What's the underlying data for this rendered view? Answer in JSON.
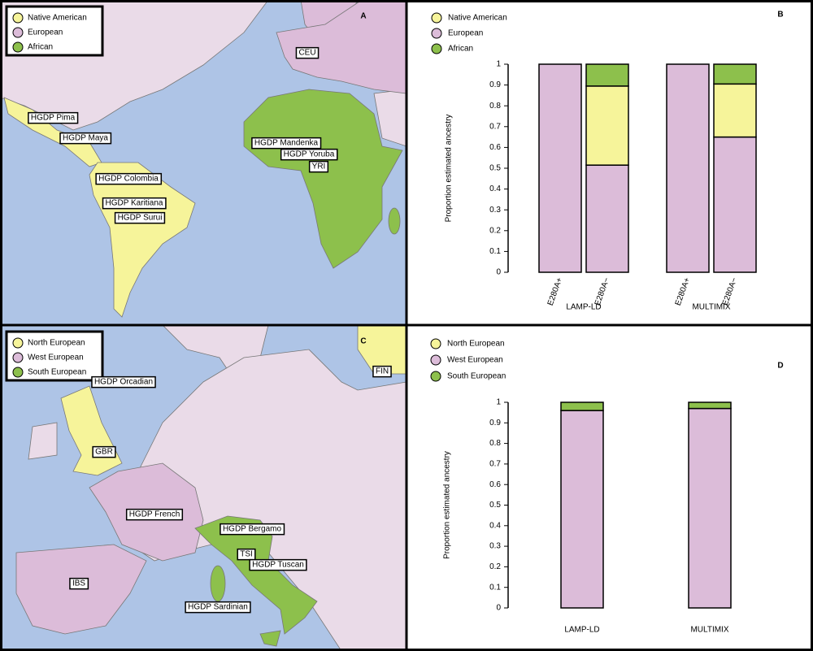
{
  "maps": [
    {
      "panel": "A",
      "legend": [
        {
          "label": "Native American",
          "color": "#f6f49a"
        },
        {
          "label": "European",
          "color": "#dcbcd9"
        },
        {
          "label": "African",
          "color": "#8dc04c"
        }
      ],
      "labels": [
        "CEU",
        "HGDP Pima",
        "HGDP Maya",
        "HGDP Colombia",
        "HGDP Mandenka",
        "HGDP Yoruba",
        "YRI",
        "HGDP Karitiana",
        "HGDP Surui"
      ]
    },
    {
      "panel": "C",
      "legend": [
        {
          "label": "North European",
          "color": "#f6f49a"
        },
        {
          "label": "West European",
          "color": "#dcbcd9"
        },
        {
          "label": "South European",
          "color": "#8dc04c"
        }
      ],
      "labels": [
        "FIN",
        "HGDP Orcadian",
        "GBR",
        "HGDP French",
        "HGDP Bergamo",
        "TSI",
        "HGDP Tuscan",
        "IBS",
        "HGDP Sardinian"
      ]
    }
  ],
  "chart_data": [
    {
      "type": "bar",
      "stacked": true,
      "panel": "B",
      "y_label": "Proportion estimated ancestry",
      "categories": [
        "E280A+",
        "E280A−",
        "E280A+",
        "E280A−"
      ],
      "group_labels": [
        "LAMP-LD",
        "MULTIMIX"
      ],
      "series": [
        {
          "name": "Native American",
          "color": "#f6f49a",
          "values": [
            0,
            0.38,
            0,
            0.255
          ]
        },
        {
          "name": "European",
          "color": "#dcbcd9",
          "values": [
            1,
            0.515,
            1,
            0.65
          ]
        },
        {
          "name": "African",
          "color": "#8dc04c",
          "values": [
            0,
            0.105,
            0,
            0.095
          ]
        }
      ],
      "ylim": [
        0,
        1
      ],
      "yticks": [
        0,
        0.1,
        0.2,
        0.3,
        0.4,
        0.5,
        0.6,
        0.7,
        0.8,
        0.9,
        1
      ]
    },
    {
      "type": "bar",
      "stacked": true,
      "panel": "D",
      "y_label": "Proportion estimated ancestry",
      "categories": [
        "LAMP-LD",
        "MULTIMIX"
      ],
      "series": [
        {
          "name": "North European",
          "color": "#f6f49a",
          "values": [
            0,
            0
          ]
        },
        {
          "name": "West European",
          "color": "#dcbcd9",
          "values": [
            0.96,
            0.97
          ]
        },
        {
          "name": "South European",
          "color": "#8dc04c",
          "values": [
            0.04,
            0.03
          ]
        }
      ],
      "ylim": [
        0,
        1
      ],
      "yticks": [
        0,
        0.1,
        0.2,
        0.3,
        0.4,
        0.5,
        0.6,
        0.7,
        0.8,
        0.9,
        1
      ]
    }
  ]
}
